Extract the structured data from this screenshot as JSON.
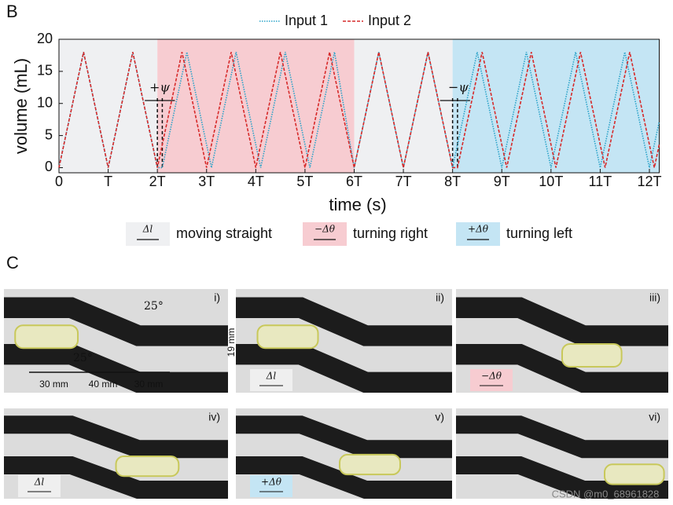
{
  "panel_b": "B",
  "panel_c": "C",
  "chart_data": {
    "type": "line",
    "xlabel": "time (s)",
    "ylabel": "volume (mL)",
    "xlim": [
      0,
      12.2
    ],
    "ylim": [
      -0.8,
      20
    ],
    "xticks": [
      0,
      {
        "value": 1,
        "label": "T"
      },
      {
        "value": 2,
        "label": "2T"
      },
      {
        "value": 3,
        "label": "3T"
      },
      {
        "value": 4,
        "label": "4T"
      },
      {
        "value": 5,
        "label": "5T"
      },
      {
        "value": 6,
        "label": "6T"
      },
      {
        "value": 7,
        "label": "7T"
      },
      {
        "value": 8,
        "label": "8T"
      },
      {
        "value": 9,
        "label": "9T"
      },
      {
        "value": 10,
        "label": "10T"
      },
      {
        "value": 11,
        "label": "11T"
      },
      {
        "value": 12,
        "label": "12T"
      }
    ],
    "yticks": [
      0,
      5,
      10,
      15,
      20
    ],
    "legend": "top",
    "series": [
      {
        "name": "Input 1",
        "color": "#2aa3c9",
        "x": [
          0,
          0.5,
          1,
          1.5,
          2,
          2.1,
          2.6,
          3.1,
          3.6,
          4.1,
          4.6,
          5.1,
          5.6,
          6,
          6.5,
          7,
          7.5,
          8,
          8.5,
          9,
          9.5,
          10,
          10.5,
          11,
          11.5,
          12,
          12.2
        ],
        "values": [
          0,
          18,
          0,
          18,
          0,
          0,
          18,
          0,
          18,
          0,
          18,
          0,
          18,
          0,
          18,
          0,
          18,
          0,
          18,
          0,
          18,
          0,
          18,
          0,
          18,
          0,
          7.2
        ]
      },
      {
        "name": "Input 2",
        "color": "#d62a2a",
        "x": [
          0,
          0.5,
          1,
          1.5,
          2,
          2.5,
          3,
          3.5,
          4,
          4.5,
          5,
          5.5,
          6,
          6.5,
          7,
          7.5,
          8,
          8.1,
          8.6,
          9.1,
          9.6,
          10.1,
          10.6,
          11.1,
          11.6,
          12.1,
          12.2
        ],
        "values": [
          0,
          18,
          0,
          18,
          0,
          18,
          0,
          18,
          0,
          18,
          0,
          18,
          0,
          18,
          0,
          18,
          0,
          0,
          18,
          0,
          18,
          0,
          18,
          0,
          18,
          0,
          3.6
        ]
      }
    ],
    "regions": [
      {
        "from": 0,
        "to": 2,
        "color": "#eff0f2",
        "icon": "Δl",
        "label": "moving straight"
      },
      {
        "from": 2,
        "to": 6,
        "color": "#f7ccd1",
        "icon": "−Δθ",
        "label": "turning right"
      },
      {
        "from": 6,
        "to": 8,
        "color": "#eff0f2"
      },
      {
        "from": 8,
        "to": 12.2,
        "color": "#c4e5f4",
        "icon": "+Δθ",
        "label": "turning left"
      }
    ],
    "annotations": [
      "+ψ",
      "−ψ"
    ]
  },
  "photos": [
    {
      "label": "i)",
      "angle_top": "25°",
      "angle_bottom": "25°",
      "width_label": "19 mm",
      "segments": [
        "30 mm",
        "40 mm",
        "30 mm"
      ]
    },
    {
      "label": "ii)",
      "chip": "Δl"
    },
    {
      "label": "iii)",
      "chip": "−Δθ"
    },
    {
      "label": "iv)",
      "chip": "Δl"
    },
    {
      "label": "v)",
      "chip": "+Δθ"
    },
    {
      "label": "vi)"
    }
  ],
  "watermark": "CSDN @m0_68961828"
}
